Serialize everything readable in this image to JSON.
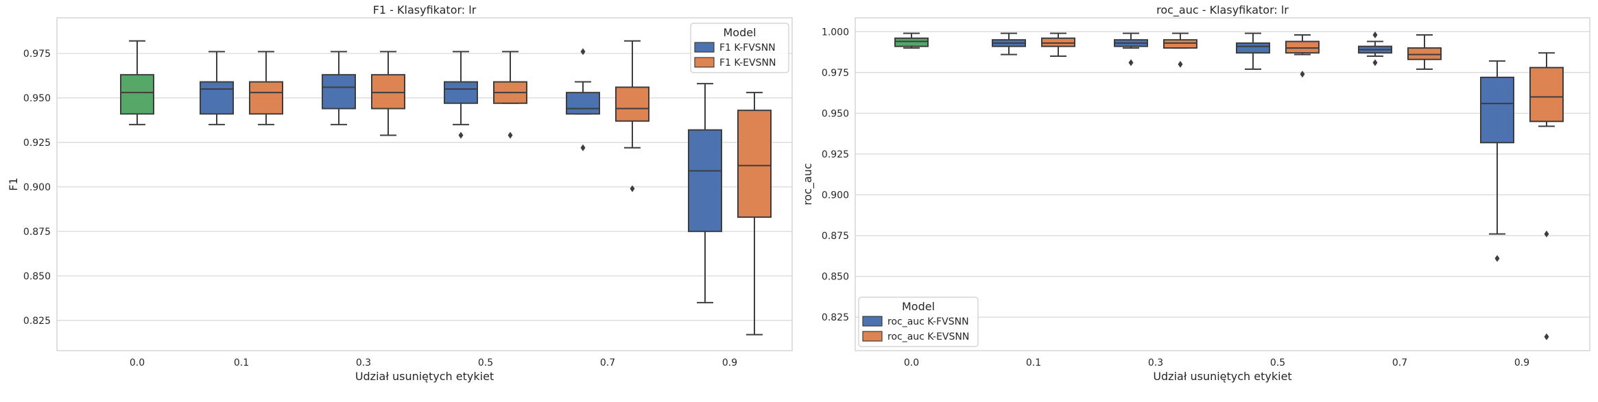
{
  "chart_data": [
    {
      "type": "box",
      "title": "F1 - Klasyfikator: lr",
      "xlabel": "Udział usuniętych etykiet",
      "ylabel": "F1",
      "categories": [
        "0.0",
        "0.1",
        "0.3",
        "0.5",
        "0.7",
        "0.9"
      ],
      "ylim": [
        0.808,
        0.995
      ],
      "yticks": [
        "0.825",
        "0.850",
        "0.875",
        "0.900",
        "0.925",
        "0.950",
        "0.975"
      ],
      "grid": true,
      "legend": {
        "title": "Model",
        "position": "top-right",
        "entries": [
          "F1 K-FVSNN",
          "F1 K-EVSNN"
        ]
      },
      "baseline": {
        "category": "0.0",
        "color": "#55a868",
        "box": {
          "min": 0.935,
          "q1": 0.941,
          "median": 0.953,
          "q3": 0.963,
          "max": 0.982
        },
        "outliers": []
      },
      "series": [
        {
          "name": "F1 K-FVSNN",
          "color": "#4c72b0",
          "boxes": [
            {
              "category": "0.1",
              "min": 0.935,
              "q1": 0.941,
              "median": 0.955,
              "q3": 0.959,
              "max": 0.976,
              "outliers": []
            },
            {
              "category": "0.3",
              "min": 0.935,
              "q1": 0.944,
              "median": 0.956,
              "q3": 0.963,
              "max": 0.976,
              "outliers": []
            },
            {
              "category": "0.5",
              "min": 0.935,
              "q1": 0.947,
              "median": 0.955,
              "q3": 0.959,
              "max": 0.976,
              "outliers": [
                0.929
              ]
            },
            {
              "category": "0.7",
              "min": 0.941,
              "q1": 0.941,
              "median": 0.944,
              "q3": 0.953,
              "max": 0.959,
              "outliers": [
                0.976,
                0.922
              ]
            },
            {
              "category": "0.9",
              "min": 0.835,
              "q1": 0.875,
              "median": 0.909,
              "q3": 0.932,
              "max": 0.958,
              "outliers": []
            }
          ]
        },
        {
          "name": "F1 K-EVSNN",
          "color": "#dd8452",
          "boxes": [
            {
              "category": "0.1",
              "min": 0.935,
              "q1": 0.941,
              "median": 0.953,
              "q3": 0.959,
              "max": 0.976,
              "outliers": []
            },
            {
              "category": "0.3",
              "min": 0.929,
              "q1": 0.944,
              "median": 0.953,
              "q3": 0.963,
              "max": 0.976,
              "outliers": []
            },
            {
              "category": "0.5",
              "min": 0.947,
              "q1": 0.947,
              "median": 0.953,
              "q3": 0.959,
              "max": 0.976,
              "outliers": [
                0.929
              ]
            },
            {
              "category": "0.7",
              "min": 0.922,
              "q1": 0.937,
              "median": 0.944,
              "q3": 0.956,
              "max": 0.982,
              "outliers": [
                0.899
              ]
            },
            {
              "category": "0.9",
              "min": 0.817,
              "q1": 0.883,
              "median": 0.912,
              "q3": 0.943,
              "max": 0.953,
              "outliers": []
            }
          ]
        }
      ]
    },
    {
      "type": "box",
      "title": "roc_auc - Klasyfikator: lr",
      "xlabel": "Udział usuniętych etykiet",
      "ylabel": "roc_auc",
      "categories": [
        "0.0",
        "0.1",
        "0.3",
        "0.5",
        "0.7",
        "0.9"
      ],
      "ylim": [
        0.8045,
        1.0085
      ],
      "yticks": [
        "0.825",
        "0.850",
        "0.875",
        "0.900",
        "0.925",
        "0.950",
        "0.975",
        "1.000"
      ],
      "grid": true,
      "legend": {
        "title": "Model",
        "position": "bottom-left",
        "entries": [
          "roc_auc K-FVSNN",
          "roc_auc K-EVSNN"
        ]
      },
      "baseline": {
        "category": "0.0",
        "color": "#55a868",
        "box": {
          "min": 0.99,
          "q1": 0.991,
          "median": 0.994,
          "q3": 0.996,
          "max": 0.999
        },
        "outliers": []
      },
      "series": [
        {
          "name": "roc_auc K-FVSNN",
          "color": "#4c72b0",
          "boxes": [
            {
              "category": "0.1",
              "min": 0.986,
              "q1": 0.991,
              "median": 0.993,
              "q3": 0.995,
              "max": 0.999,
              "outliers": []
            },
            {
              "category": "0.3",
              "min": 0.99,
              "q1": 0.991,
              "median": 0.993,
              "q3": 0.995,
              "max": 0.999,
              "outliers": [
                0.981
              ]
            },
            {
              "category": "0.5",
              "min": 0.977,
              "q1": 0.987,
              "median": 0.991,
              "q3": 0.993,
              "max": 0.999,
              "outliers": []
            },
            {
              "category": "0.7",
              "min": 0.985,
              "q1": 0.987,
              "median": 0.989,
              "q3": 0.991,
              "max": 0.994,
              "outliers": [
                0.998,
                0.981
              ]
            },
            {
              "category": "0.9",
              "min": 0.876,
              "q1": 0.932,
              "median": 0.956,
              "q3": 0.972,
              "max": 0.982,
              "outliers": [
                0.861
              ]
            }
          ]
        },
        {
          "name": "roc_auc K-EVSNN",
          "color": "#dd8452",
          "boxes": [
            {
              "category": "0.1",
              "min": 0.985,
              "q1": 0.991,
              "median": 0.993,
              "q3": 0.996,
              "max": 0.999,
              "outliers": []
            },
            {
              "category": "0.3",
              "min": 0.99,
              "q1": 0.99,
              "median": 0.993,
              "q3": 0.995,
              "max": 0.999,
              "outliers": [
                0.98
              ]
            },
            {
              "category": "0.5",
              "min": 0.986,
              "q1": 0.987,
              "median": 0.99,
              "q3": 0.994,
              "max": 0.998,
              "outliers": [
                0.974
              ]
            },
            {
              "category": "0.7",
              "min": 0.977,
              "q1": 0.983,
              "median": 0.986,
              "q3": 0.99,
              "max": 0.998,
              "outliers": []
            },
            {
              "category": "0.9",
              "min": 0.942,
              "q1": 0.945,
              "median": 0.96,
              "q3": 0.978,
              "max": 0.987,
              "outliers": [
                0.876,
                0.813
              ]
            }
          ]
        }
      ]
    }
  ]
}
